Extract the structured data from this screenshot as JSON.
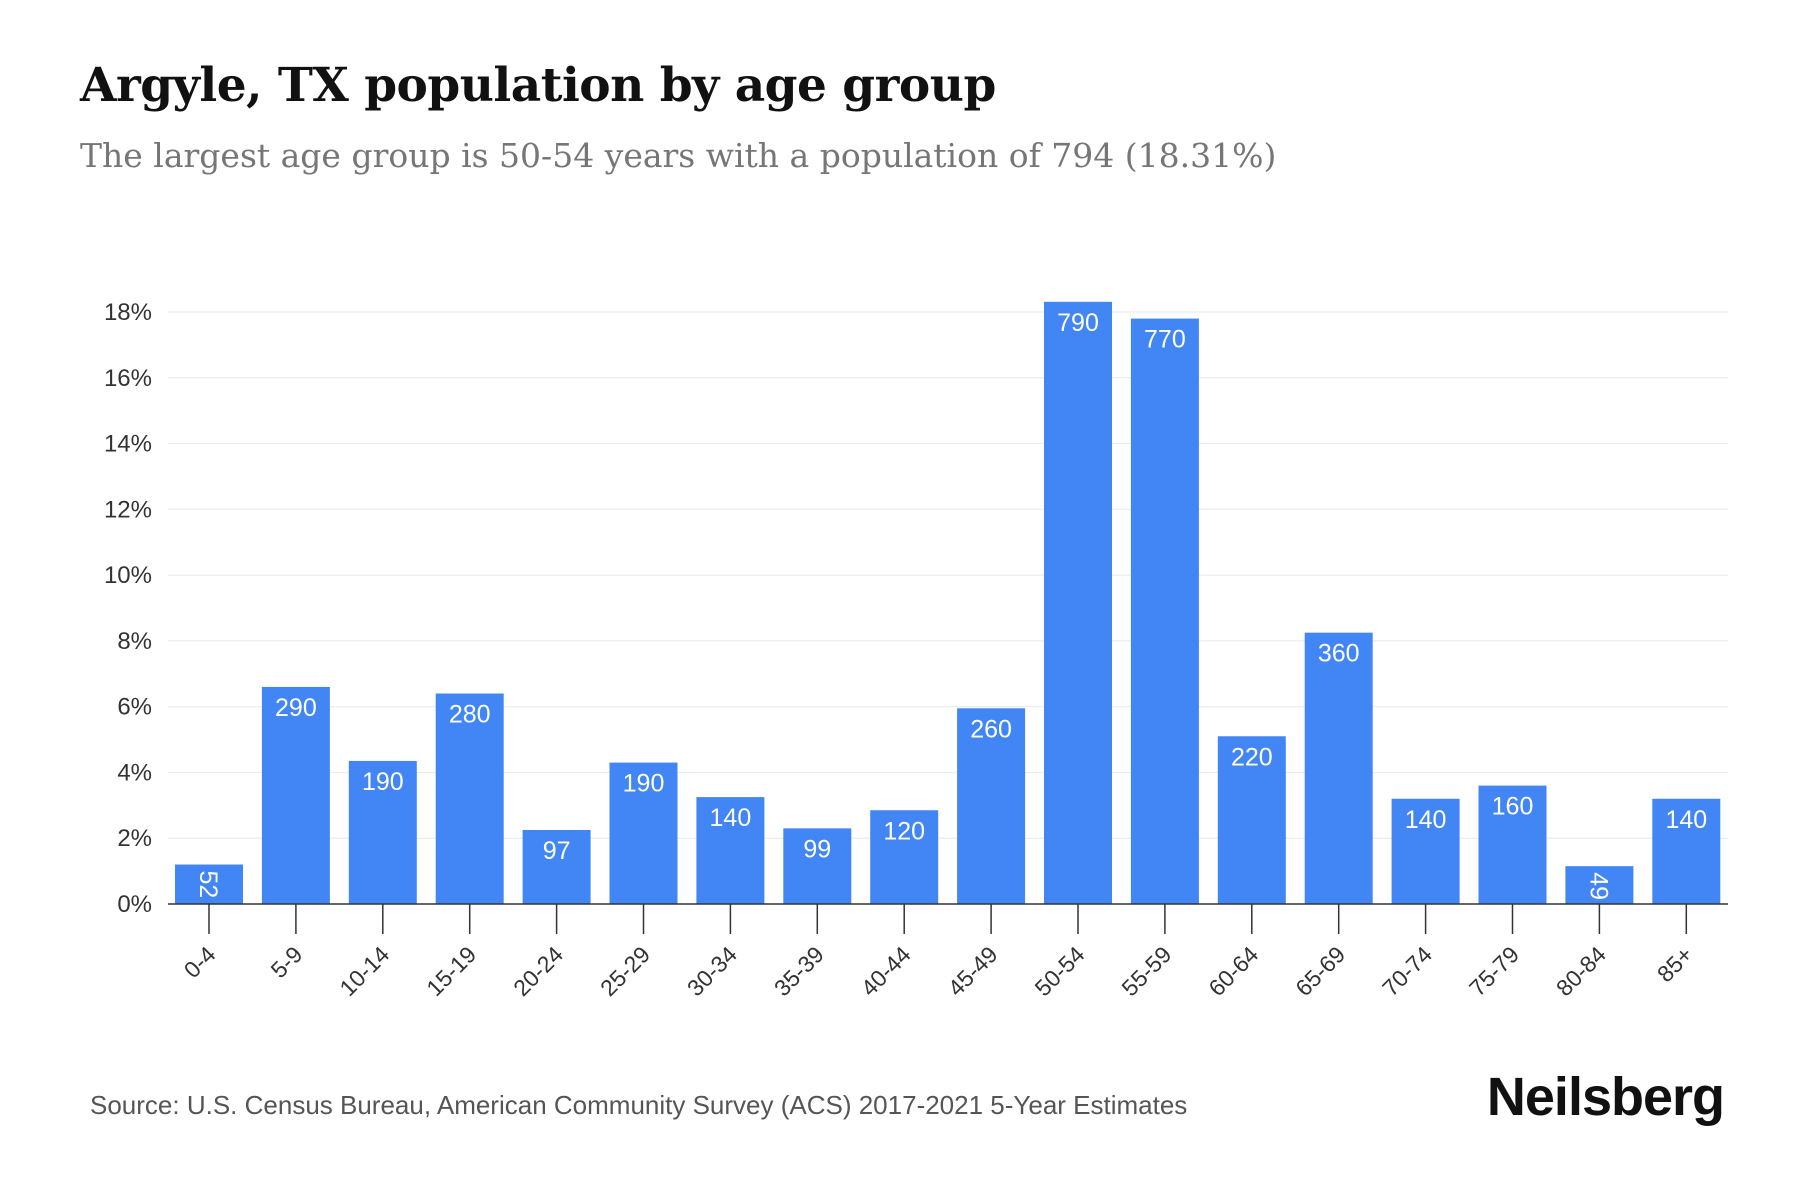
{
  "header": {
    "title": "Argyle, TX population by age group",
    "subtitle": "The largest age group is 50-54 years with a population of 794 (18.31%)"
  },
  "footer": {
    "source": "Source: U.S. Census Bureau, American Community Survey (ACS) 2017-2021 5-Year Estimates",
    "brand": "Neilsberg"
  },
  "colors": {
    "bar": "#4285f4",
    "grid": "#ececec",
    "axis": "#333333",
    "label_inside": "#ffffff",
    "label_outside": "#333333"
  },
  "chart_data": {
    "type": "bar",
    "title": "Argyle, TX population by age group",
    "subtitle": "The largest age group is 50-54 years with a population of 794 (18.31%)",
    "categories": [
      "0-4",
      "5-9",
      "10-14",
      "15-19",
      "20-24",
      "25-29",
      "30-34",
      "35-39",
      "40-44",
      "45-49",
      "50-54",
      "55-59",
      "60-64",
      "65-69",
      "70-74",
      "75-79",
      "80-84",
      "85+"
    ],
    "values": [
      1.2,
      6.6,
      4.35,
      6.4,
      2.25,
      4.3,
      3.25,
      2.3,
      2.85,
      5.95,
      18.31,
      17.8,
      5.1,
      8.25,
      3.2,
      3.6,
      1.15,
      3.2
    ],
    "data_labels": [
      "52",
      "290",
      "190",
      "280",
      "97",
      "190",
      "140",
      "99",
      "120",
      "260",
      "790",
      "770",
      "220",
      "360",
      "140",
      "160",
      "49",
      "140"
    ],
    "y_ticks": [
      "0%",
      "2%",
      "4%",
      "6%",
      "8%",
      "10%",
      "12%",
      "14%",
      "16%",
      "18%"
    ],
    "ylim": [
      0,
      18
    ],
    "grid": true,
    "legend": "none",
    "xlabel": "",
    "ylabel": ""
  }
}
